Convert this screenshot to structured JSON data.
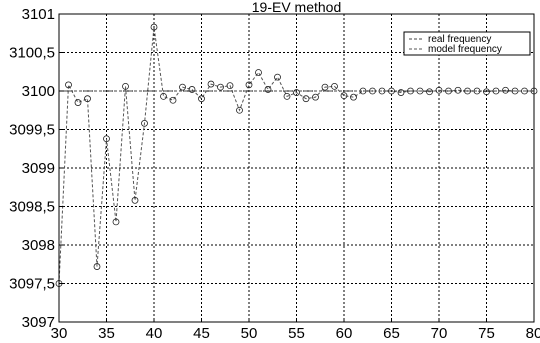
{
  "chart_data": {
    "type": "line",
    "title": "19-EV method",
    "xlabel": "",
    "ylabel": "",
    "xlim": [
      30,
      80
    ],
    "ylim": [
      3097,
      3101
    ],
    "x_ticks": [
      30,
      35,
      40,
      45,
      50,
      55,
      60,
      65,
      70,
      75,
      80
    ],
    "x_tick_labels": [
      "30",
      "35",
      "40",
      "45",
      "50",
      "55",
      "60",
      "65",
      "70",
      "75",
      "80"
    ],
    "y_ticks": [
      3097,
      3097.5,
      3098,
      3098.5,
      3099,
      3099.5,
      3100,
      3100.5,
      3101
    ],
    "y_tick_labels": [
      "3097",
      "3097,5",
      "3098",
      "3098,5",
      "3099",
      "3099,5",
      "3100",
      "3100,5",
      "3101"
    ],
    "grid": true,
    "legend": "top-right",
    "series": [
      {
        "name": "real frequency",
        "style": "dashed",
        "color": "#444444",
        "x": [
          30,
          31,
          32,
          33,
          34,
          35,
          36,
          37,
          38,
          39,
          40,
          41,
          42,
          43,
          44,
          45,
          46,
          47,
          48,
          49,
          50,
          51,
          52,
          53,
          54,
          55,
          56,
          57,
          58,
          59,
          60,
          61,
          62,
          63,
          64,
          65,
          66,
          67,
          68,
          69,
          70,
          71,
          72,
          73,
          74,
          75,
          76,
          77,
          78,
          79,
          80
        ],
        "y": [
          3100,
          3100,
          3100,
          3100,
          3100,
          3100,
          3100,
          3100,
          3100,
          3100,
          3100,
          3100,
          3100,
          3100,
          3100,
          3100,
          3100,
          3100,
          3100,
          3100,
          3100,
          3100,
          3100,
          3100,
          3100,
          3100,
          3100,
          3100,
          3100,
          3100,
          3100,
          3100,
          3100,
          3100,
          3100,
          3100,
          3100,
          3100,
          3100,
          3100,
          3100,
          3100,
          3100,
          3100,
          3100,
          3100,
          3100,
          3100,
          3100,
          3100,
          3100
        ]
      },
      {
        "name": "model frequency",
        "style": "dashed",
        "marker": "circle",
        "color": "#555555",
        "x": [
          30,
          31,
          32,
          33,
          34,
          35,
          36,
          37,
          38,
          39,
          40,
          41,
          42,
          43,
          44,
          45,
          46,
          47,
          48,
          49,
          50,
          51,
          52,
          53,
          54,
          55,
          56,
          57,
          58,
          59,
          60,
          61,
          62,
          63,
          64,
          65,
          66,
          67,
          68,
          69,
          70,
          71,
          72,
          73,
          74,
          75,
          76,
          77,
          78,
          79,
          80
        ],
        "y": [
          3097.5,
          3100.08,
          3099.85,
          3099.9,
          3097.72,
          3099.38,
          3098.3,
          3100.06,
          3098.58,
          3099.58,
          3100.83,
          3099.93,
          3099.88,
          3100.05,
          3100.02,
          3099.9,
          3100.09,
          3100.05,
          3100.07,
          3099.75,
          3100.08,
          3100.24,
          3100.02,
          3100.18,
          3099.93,
          3099.98,
          3099.9,
          3099.92,
          3100.05,
          3100.06,
          3099.94,
          3099.92,
          3100,
          3100,
          3100,
          3100,
          3099.98,
          3100,
          3100,
          3099.99,
          3100.01,
          3100,
          3100.01,
          3100,
          3100,
          3099.99,
          3100,
          3100.01,
          3100,
          3100,
          3100
        ]
      }
    ]
  }
}
